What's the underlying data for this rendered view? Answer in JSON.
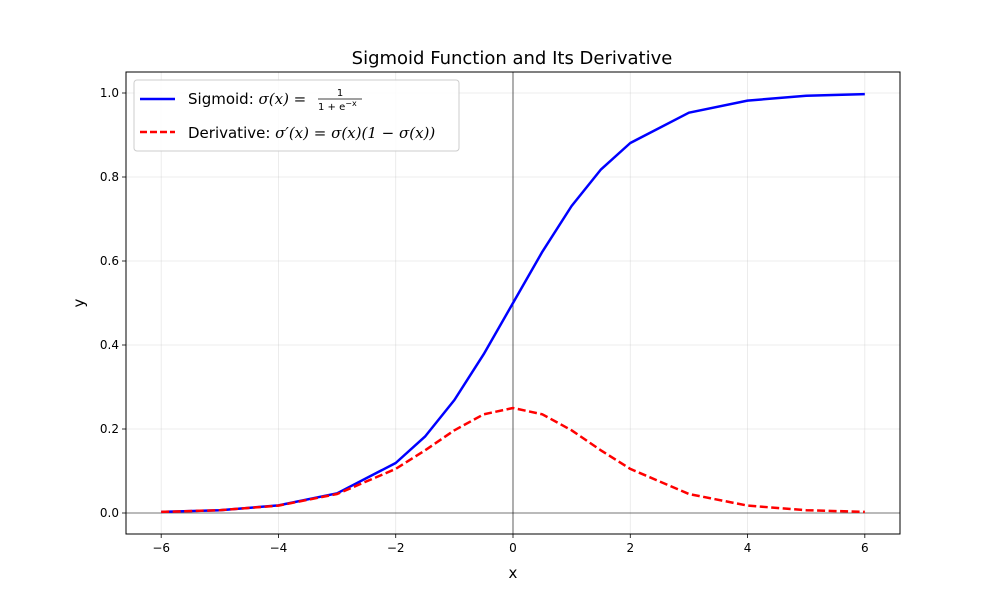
{
  "chart_data": {
    "type": "line",
    "title": "Sigmoid Function and Its Derivative",
    "xlabel": "x",
    "ylabel": "y",
    "xlim": [
      -6.6,
      6.6
    ],
    "ylim": [
      -0.05,
      1.05
    ],
    "x_ticks": [
      -6,
      -4,
      -2,
      0,
      2,
      4,
      6
    ],
    "x_tick_labels": [
      "−6",
      "−4",
      "−2",
      "0",
      "2",
      "4",
      "6"
    ],
    "y_ticks": [
      0.0,
      0.2,
      0.4,
      0.6,
      0.8,
      1.0
    ],
    "y_tick_labels": [
      "0.0",
      "0.2",
      "0.4",
      "0.6",
      "0.8",
      "1.0"
    ],
    "grid": true,
    "legend_position": "top-left",
    "reference_lines": {
      "x": 0,
      "y": 0
    },
    "x": [
      -6,
      -5,
      -4,
      -3,
      -2,
      -1.5,
      -1,
      -0.5,
      0,
      0.5,
      1,
      1.5,
      2,
      3,
      4,
      5,
      6
    ],
    "series": [
      {
        "name": "Sigmoid: σ(x) = 1/(1 + e^−x)",
        "color": "#0000ff",
        "style": "solid",
        "values": [
          0.0025,
          0.0067,
          0.018,
          0.047,
          0.119,
          0.182,
          0.269,
          0.378,
          0.5,
          0.622,
          0.731,
          0.818,
          0.881,
          0.953,
          0.982,
          0.9933,
          0.9975
        ]
      },
      {
        "name": "Derivative: σ′(x) = σ(x)(1 − σ(x))",
        "color": "#ff0000",
        "style": "dashed",
        "values": [
          0.0025,
          0.0066,
          0.0177,
          0.0452,
          0.105,
          0.149,
          0.197,
          0.235,
          0.25,
          0.235,
          0.197,
          0.149,
          0.105,
          0.0452,
          0.0177,
          0.0066,
          0.0025
        ]
      }
    ],
    "legend": {
      "sigmoid_prefix": "Sigmoid: ",
      "sigmoid_math": "σ(x) = ",
      "sigmoid_numerator": "1",
      "sigmoid_denominator": "1 + e",
      "sigmoid_exponent": "−x",
      "derivative_prefix": "Derivative: ",
      "derivative_math": "σ′(x) = σ(x)(1 − σ(x))"
    }
  }
}
